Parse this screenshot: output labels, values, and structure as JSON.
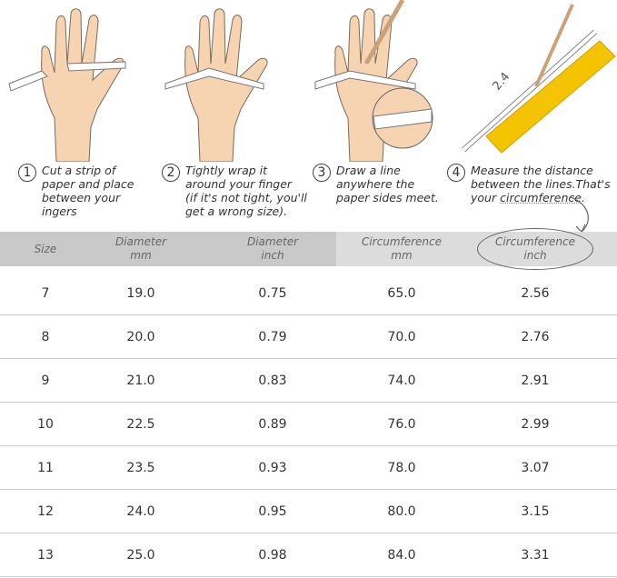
{
  "steps": [
    {
      "number": "1",
      "text": "Cut a strip of\npaper and place\nbetween your\ningers"
    },
    {
      "number": "2",
      "text": "Tightly wrap it\naround your finger\n(if it's not tight, you'll\nget a wrong size)."
    },
    {
      "number": "3",
      "text": "Draw a line\nanywhere the\npaper sides meet."
    },
    {
      "number": "4",
      "text_before": "Measure the distance\nbetween the lines.That's\nyour ",
      "text_underlined": "circumference",
      "text_after": "."
    }
  ],
  "ruler_mark": "2.4",
  "colors": {
    "skin": "#f6d4b2",
    "ruler": "#f5c400",
    "header_dark": "#c9c9c9",
    "header_light": "#dcdcdc"
  },
  "table": {
    "headers": [
      [
        "Size",
        ""
      ],
      [
        "Diameter",
        "mm"
      ],
      [
        "Diameter",
        "inch"
      ],
      [
        "Circumference",
        "mm"
      ],
      [
        "Circumference",
        "inch"
      ]
    ],
    "rows": [
      [
        "7",
        "19.0",
        "0.75",
        "65.0",
        "2.56"
      ],
      [
        "8",
        "20.0",
        "0.79",
        "70.0",
        "2.76"
      ],
      [
        "9",
        "21.0",
        "0.83",
        "74.0",
        "2.91"
      ],
      [
        "10",
        "22.5",
        "0.89",
        "76.0",
        "2.99"
      ],
      [
        "11",
        "23.5",
        "0.93",
        "78.0",
        "3.07"
      ],
      [
        "12",
        "24.0",
        "0.95",
        "80.0",
        "3.15"
      ],
      [
        "13",
        "25.0",
        "0.98",
        "84.0",
        "3.31"
      ]
    ]
  }
}
